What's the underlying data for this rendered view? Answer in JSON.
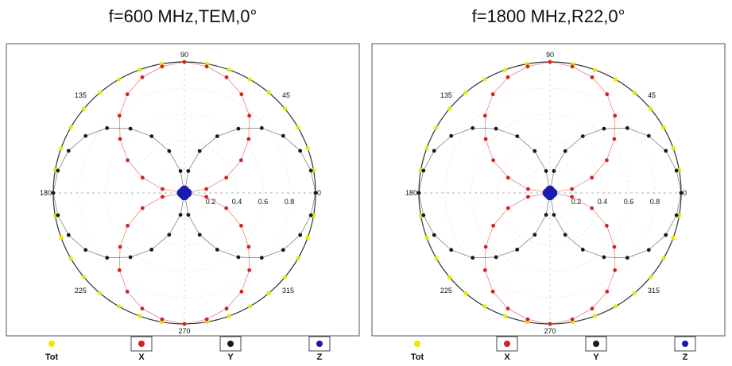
{
  "chart_data": [
    {
      "type": "polar-scatter",
      "title": "f=600 MHz,TEM,0°",
      "angle_ticks": [
        "90",
        "45",
        "0",
        "315",
        "270",
        "225",
        "180",
        "135"
      ],
      "radial_ticks": [
        "0.2",
        "0.4",
        "0.6",
        "0.8"
      ],
      "rlim": [
        0,
        1
      ],
      "series": [
        {
          "name": "Tot",
          "color": "#e8e800",
          "values": [
            1,
            1,
            1,
            1,
            1,
            1,
            1,
            1,
            1,
            1,
            1,
            1,
            1,
            1,
            1,
            1,
            1,
            1,
            1,
            1,
            1,
            1,
            1,
            1,
            1,
            1,
            1,
            1,
            1,
            1,
            1,
            1,
            1,
            1,
            1,
            1
          ],
          "angles_deg": [
            0,
            10,
            20,
            30,
            40,
            50,
            60,
            70,
            80,
            90,
            100,
            110,
            120,
            130,
            140,
            150,
            160,
            170,
            180,
            190,
            200,
            210,
            220,
            230,
            240,
            250,
            260,
            270,
            280,
            290,
            300,
            310,
            320,
            330,
            340,
            350
          ]
        },
        {
          "name": "X",
          "color": "#d42020",
          "angles_deg": [
            0,
            10,
            20,
            30,
            40,
            50,
            60,
            70,
            80,
            90,
            100,
            110,
            120,
            130,
            140,
            150,
            160,
            170,
            180,
            190,
            200,
            210,
            220,
            230,
            240,
            250,
            260,
            270,
            280,
            290,
            300,
            310,
            320,
            330,
            340,
            350
          ],
          "values": [
            0,
            0.17,
            0.34,
            0.5,
            0.64,
            0.77,
            0.87,
            0.94,
            0.98,
            1,
            0.98,
            0.94,
            0.87,
            0.77,
            0.64,
            0.5,
            0.34,
            0.17,
            0,
            0.17,
            0.34,
            0.5,
            0.64,
            0.77,
            0.87,
            0.94,
            0.98,
            1,
            0.98,
            0.94,
            0.87,
            0.77,
            0.64,
            0.5,
            0.34,
            0.17
          ]
        },
        {
          "name": "Y",
          "color": "#1a1a1a",
          "angles_deg": [
            0,
            10,
            20,
            30,
            40,
            50,
            60,
            70,
            80,
            90,
            100,
            110,
            120,
            130,
            140,
            150,
            160,
            170,
            180,
            190,
            200,
            210,
            220,
            230,
            240,
            250,
            260,
            270,
            280,
            290,
            300,
            310,
            320,
            330,
            340,
            350
          ],
          "values": [
            1,
            0.98,
            0.94,
            0.87,
            0.77,
            0.64,
            0.5,
            0.34,
            0.17,
            0,
            0.17,
            0.34,
            0.5,
            0.64,
            0.77,
            0.87,
            0.94,
            0.98,
            1,
            0.98,
            0.94,
            0.87,
            0.77,
            0.64,
            0.5,
            0.34,
            0.17,
            0,
            0.17,
            0.34,
            0.5,
            0.64,
            0.77,
            0.87,
            0.94,
            0.98
          ]
        },
        {
          "name": "Z",
          "color": "#1a1ab0",
          "angles_deg": [
            0,
            90,
            180,
            270
          ],
          "values": [
            0.02,
            0.02,
            0.02,
            0.02
          ]
        }
      ],
      "legend": {
        "placement": "bottom",
        "labels": [
          "Tot",
          "X",
          "Y",
          "Z"
        ]
      }
    },
    {
      "type": "polar-scatter",
      "title": "f=1800 MHz,R22,0°",
      "angle_ticks": [
        "90",
        "45",
        "0",
        "315",
        "270",
        "225",
        "180",
        "135"
      ],
      "radial_ticks": [
        "0.2",
        "0.4",
        "0.6",
        "0.8"
      ],
      "rlim": [
        0,
        1
      ],
      "series": [
        {
          "name": "Tot",
          "color": "#e8e800",
          "values": [
            1,
            1,
            1,
            1,
            1,
            1,
            1,
            1,
            1,
            1,
            1,
            1,
            1,
            1,
            1,
            1,
            1,
            1,
            1,
            1,
            1,
            1,
            1,
            1,
            1,
            1,
            1,
            1,
            1,
            1,
            1,
            1,
            1,
            1,
            1,
            1
          ],
          "angles_deg": [
            0,
            10,
            20,
            30,
            40,
            50,
            60,
            70,
            80,
            90,
            100,
            110,
            120,
            130,
            140,
            150,
            160,
            170,
            180,
            190,
            200,
            210,
            220,
            230,
            240,
            250,
            260,
            270,
            280,
            290,
            300,
            310,
            320,
            330,
            340,
            350
          ]
        },
        {
          "name": "X",
          "color": "#d42020",
          "angles_deg": [
            0,
            10,
            20,
            30,
            40,
            50,
            60,
            70,
            80,
            90,
            100,
            110,
            120,
            130,
            140,
            150,
            160,
            170,
            180,
            190,
            200,
            210,
            220,
            230,
            240,
            250,
            260,
            270,
            280,
            290,
            300,
            310,
            320,
            330,
            340,
            350
          ],
          "values": [
            0,
            0.17,
            0.34,
            0.5,
            0.64,
            0.77,
            0.87,
            0.94,
            0.98,
            1,
            0.98,
            0.94,
            0.87,
            0.77,
            0.64,
            0.5,
            0.34,
            0.17,
            0,
            0.17,
            0.34,
            0.5,
            0.64,
            0.77,
            0.87,
            0.94,
            0.98,
            1,
            0.98,
            0.94,
            0.87,
            0.77,
            0.64,
            0.5,
            0.34,
            0.17
          ]
        },
        {
          "name": "Y",
          "color": "#1a1a1a",
          "angles_deg": [
            0,
            10,
            20,
            30,
            40,
            50,
            60,
            70,
            80,
            90,
            100,
            110,
            120,
            130,
            140,
            150,
            160,
            170,
            180,
            190,
            200,
            210,
            220,
            230,
            240,
            250,
            260,
            270,
            280,
            290,
            300,
            310,
            320,
            330,
            340,
            350
          ],
          "values": [
            1,
            0.98,
            0.94,
            0.87,
            0.77,
            0.64,
            0.5,
            0.34,
            0.17,
            0,
            0.17,
            0.34,
            0.5,
            0.64,
            0.77,
            0.87,
            0.94,
            0.98,
            1,
            0.98,
            0.94,
            0.87,
            0.77,
            0.64,
            0.5,
            0.34,
            0.17,
            0,
            0.17,
            0.34,
            0.5,
            0.64,
            0.77,
            0.87,
            0.94,
            0.98
          ]
        },
        {
          "name": "Z",
          "color": "#1a1ab0",
          "angles_deg": [
            0,
            90,
            180,
            270
          ],
          "values": [
            0.02,
            0.02,
            0.02,
            0.02
          ]
        }
      ],
      "legend": {
        "placement": "bottom",
        "labels": [
          "Tot",
          "X",
          "Y",
          "Z"
        ]
      }
    }
  ]
}
